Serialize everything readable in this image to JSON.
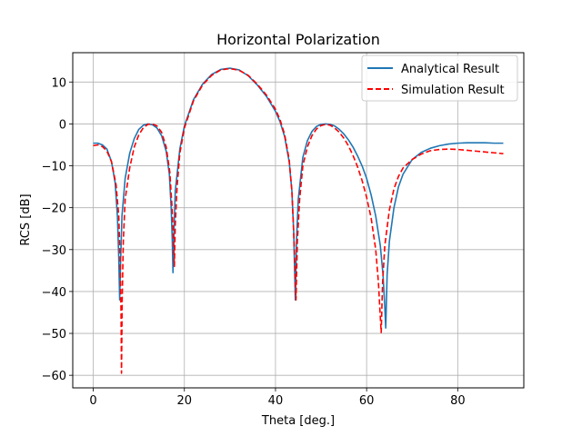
{
  "chart_data": {
    "type": "line",
    "title": "Horizontal Polarization",
    "xlabel": "Theta [deg.]",
    "ylabel": "RCS [dB]",
    "xlim": [
      -4.5,
      94.5
    ],
    "ylim": [
      -63,
      17
    ],
    "xticks": [
      0,
      20,
      40,
      60,
      80
    ],
    "yticks": [
      10,
      0,
      -10,
      -20,
      -30,
      -40,
      -50,
      -60
    ],
    "xtick_labels": [
      "0",
      "20",
      "40",
      "60",
      "80"
    ],
    "ytick_labels": [
      "10",
      "0",
      "−10",
      "−20",
      "−30",
      "−40",
      "−50",
      "−60"
    ],
    "grid": true,
    "legend_position": "top-right",
    "series": [
      {
        "name": "Analytical Result",
        "color": "#1f77b4",
        "style": "solid",
        "points": [
          [
            0,
            -4.6
          ],
          [
            1,
            -4.6
          ],
          [
            2,
            -5.0
          ],
          [
            3,
            -6.0
          ],
          [
            4,
            -9.0
          ],
          [
            4.8,
            -14.0
          ],
          [
            5.3,
            -22.0
          ],
          [
            5.6,
            -32.0
          ],
          [
            5.8,
            -42.0
          ],
          [
            6.0,
            -33.0
          ],
          [
            6.3,
            -22.0
          ],
          [
            7,
            -13.0
          ],
          [
            8,
            -7.0
          ],
          [
            9,
            -3.5
          ],
          [
            10,
            -1.3
          ],
          [
            11,
            -0.3
          ],
          [
            12,
            0.0
          ],
          [
            13,
            -0.2
          ],
          [
            14,
            -1.0
          ],
          [
            15,
            -2.8
          ],
          [
            16,
            -6.5
          ],
          [
            16.7,
            -12.0
          ],
          [
            17.1,
            -20.0
          ],
          [
            17.35,
            -28.0
          ],
          [
            17.5,
            -35.5
          ],
          [
            17.7,
            -26.0
          ],
          [
            18,
            -16.0
          ],
          [
            19,
            -6.0
          ],
          [
            20,
            -0.5
          ],
          [
            22,
            5.8
          ],
          [
            24,
            9.5
          ],
          [
            26,
            11.8
          ],
          [
            28,
            13.0
          ],
          [
            30,
            13.3
          ],
          [
            32,
            12.9
          ],
          [
            34,
            11.5
          ],
          [
            36,
            9.3
          ],
          [
            38,
            6.6
          ],
          [
            40,
            3.0
          ],
          [
            41,
            0.5
          ],
          [
            42,
            -3.0
          ],
          [
            43,
            -9.0
          ],
          [
            43.6,
            -16.0
          ],
          [
            44.0,
            -26.0
          ],
          [
            44.2,
            -35.0
          ],
          [
            44.35,
            -42.0
          ],
          [
            44.6,
            -28.0
          ],
          [
            45,
            -18.0
          ],
          [
            46,
            -8.0
          ],
          [
            47,
            -4.0
          ],
          [
            48,
            -1.8
          ],
          [
            49,
            -0.6
          ],
          [
            50,
            -0.1
          ],
          [
            51,
            0.0
          ],
          [
            52,
            -0.1
          ],
          [
            53,
            -0.5
          ],
          [
            54,
            -1.3
          ],
          [
            55,
            -2.4
          ],
          [
            56,
            -3.8
          ],
          [
            57,
            -5.5
          ],
          [
            58,
            -7.6
          ],
          [
            59,
            -10.0
          ],
          [
            60,
            -13.0
          ],
          [
            61,
            -17.0
          ],
          [
            62,
            -22.0
          ],
          [
            63,
            -29.0
          ],
          [
            63.6,
            -36.0
          ],
          [
            64.0,
            -44.0
          ],
          [
            64.2,
            -48.7
          ],
          [
            64.5,
            -36.0
          ],
          [
            65,
            -28.0
          ],
          [
            66,
            -20.0
          ],
          [
            67,
            -15.0
          ],
          [
            68,
            -12.0
          ],
          [
            70,
            -8.5
          ],
          [
            72,
            -6.8
          ],
          [
            74,
            -5.8
          ],
          [
            76,
            -5.2
          ],
          [
            78,
            -4.8
          ],
          [
            80,
            -4.6
          ],
          [
            82,
            -4.5
          ],
          [
            84,
            -4.5
          ],
          [
            86,
            -4.5
          ],
          [
            88,
            -4.6
          ],
          [
            90,
            -4.6
          ]
        ]
      },
      {
        "name": "Simulation Result",
        "color": "#ff0000",
        "style": "dashed",
        "points": [
          [
            0,
            -5.2
          ],
          [
            1,
            -5.0
          ],
          [
            2,
            -5.4
          ],
          [
            3,
            -6.5
          ],
          [
            4,
            -9.0
          ],
          [
            5,
            -14.5
          ],
          [
            5.6,
            -22.0
          ],
          [
            5.9,
            -32.0
          ],
          [
            6.1,
            -45.0
          ],
          [
            6.2,
            -59.5
          ],
          [
            6.35,
            -42.0
          ],
          [
            6.6,
            -28.0
          ],
          [
            7,
            -18.0
          ],
          [
            8,
            -10.5
          ],
          [
            9,
            -5.5
          ],
          [
            10,
            -2.6
          ],
          [
            11,
            -0.9
          ],
          [
            12,
            -0.1
          ],
          [
            13,
            0.0
          ],
          [
            14,
            -0.5
          ],
          [
            15,
            -2.0
          ],
          [
            16,
            -5.5
          ],
          [
            16.8,
            -11.5
          ],
          [
            17.3,
            -20.0
          ],
          [
            17.6,
            -27.0
          ],
          [
            17.8,
            -34.0
          ],
          [
            18.0,
            -24.0
          ],
          [
            18.4,
            -15.0
          ],
          [
            19,
            -7.0
          ],
          [
            20,
            -1.0
          ],
          [
            22,
            5.5
          ],
          [
            24,
            9.3
          ],
          [
            26,
            11.6
          ],
          [
            28,
            12.9
          ],
          [
            30,
            13.2
          ],
          [
            32,
            12.8
          ],
          [
            34,
            11.6
          ],
          [
            36,
            9.5
          ],
          [
            38,
            6.9
          ],
          [
            40,
            3.5
          ],
          [
            41,
            1.0
          ],
          [
            42,
            -2.5
          ],
          [
            43,
            -8.5
          ],
          [
            43.6,
            -16.0
          ],
          [
            44.0,
            -26.0
          ],
          [
            44.3,
            -35.0
          ],
          [
            44.5,
            -42.0
          ],
          [
            44.8,
            -28.0
          ],
          [
            45.3,
            -18.0
          ],
          [
            46,
            -10.0
          ],
          [
            47,
            -5.5
          ],
          [
            48,
            -2.8
          ],
          [
            49,
            -1.2
          ],
          [
            50,
            -0.4
          ],
          [
            51,
            -0.1
          ],
          [
            52,
            -0.3
          ],
          [
            53,
            -1.0
          ],
          [
            54,
            -2.0
          ],
          [
            55,
            -3.4
          ],
          [
            56,
            -5.2
          ],
          [
            57,
            -7.5
          ],
          [
            58,
            -10.2
          ],
          [
            59,
            -13.5
          ],
          [
            60,
            -17.5
          ],
          [
            61,
            -22.5
          ],
          [
            62,
            -30.0
          ],
          [
            62.6,
            -38.0
          ],
          [
            63.0,
            -46.0
          ],
          [
            63.2,
            -49.8
          ],
          [
            63.5,
            -38.0
          ],
          [
            64,
            -29.0
          ],
          [
            65,
            -20.5
          ],
          [
            66,
            -15.5
          ],
          [
            67,
            -12.5
          ],
          [
            68,
            -10.5
          ],
          [
            70,
            -8.5
          ],
          [
            72,
            -7.2
          ],
          [
            74,
            -6.4
          ],
          [
            76,
            -6.1
          ],
          [
            78,
            -6.0
          ],
          [
            80,
            -6.1
          ],
          [
            82,
            -6.3
          ],
          [
            84,
            -6.5
          ],
          [
            86,
            -6.7
          ],
          [
            88,
            -6.9
          ],
          [
            90,
            -7.1
          ]
        ]
      }
    ]
  }
}
